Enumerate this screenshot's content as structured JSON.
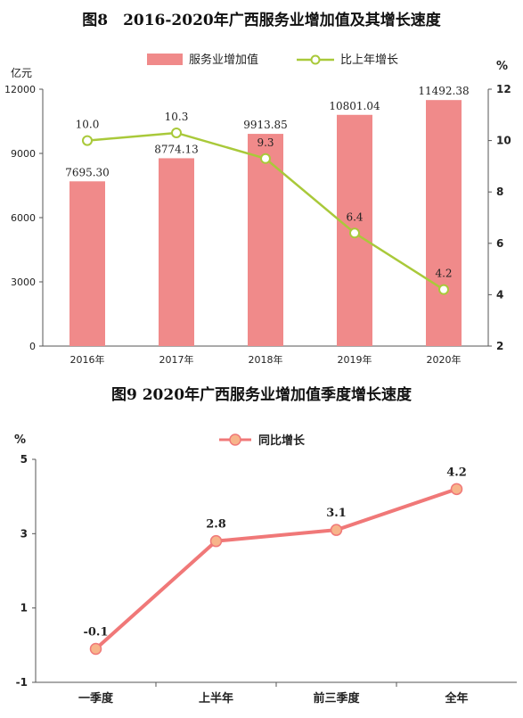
{
  "chart_data": [
    {
      "type": "bar",
      "title": "图8　2016-2020年广西服务业增加值及其增长速度",
      "categories": [
        "2016年",
        "2017年",
        "2018年",
        "2019年",
        "2020年"
      ],
      "ylabel_left": "亿元",
      "ylabel_right": "%",
      "ylim_left": [
        0,
        12000
      ],
      "yticks_left": [
        "0",
        "3000",
        "6000",
        "9000",
        "12000"
      ],
      "ylim_right": [
        2,
        12
      ],
      "yticks_right": [
        "2",
        "4",
        "6",
        "8",
        "10",
        "12"
      ],
      "legend_position": "top",
      "series": [
        {
          "name": "服务业增加值",
          "type": "bar",
          "axis": "left",
          "color": "#F08A8A",
          "values": [
            7695.3,
            8774.13,
            9913.85,
            10801.04,
            11492.38
          ],
          "labels": [
            "7695.30",
            "8774.13",
            "9913.85",
            "10801.04",
            "11492.38"
          ]
        },
        {
          "name": "比上年增长",
          "type": "line",
          "axis": "right",
          "color": "#A9C93A",
          "values": [
            10.0,
            10.3,
            9.3,
            6.4,
            4.2
          ],
          "labels": [
            "10.0",
            "10.3",
            "9.3",
            "6.4",
            "4.2"
          ]
        }
      ]
    },
    {
      "type": "line",
      "title": "图9 2020年广西服务业增加值季度增长速度",
      "categories": [
        "一季度",
        "上半年",
        "前三季度",
        "全年"
      ],
      "ylabel": "%",
      "ylim": [
        -1,
        5
      ],
      "yticks": [
        "-1",
        "1",
        "3",
        "5"
      ],
      "legend_position": "top",
      "series": [
        {
          "name": "同比增长",
          "color": "#F07878",
          "marker_color": "#F7B48A",
          "values": [
            -0.1,
            2.8,
            3.1,
            4.2
          ],
          "labels": [
            "-0.1",
            "2.8",
            "3.1",
            "4.2"
          ]
        }
      ]
    }
  ]
}
